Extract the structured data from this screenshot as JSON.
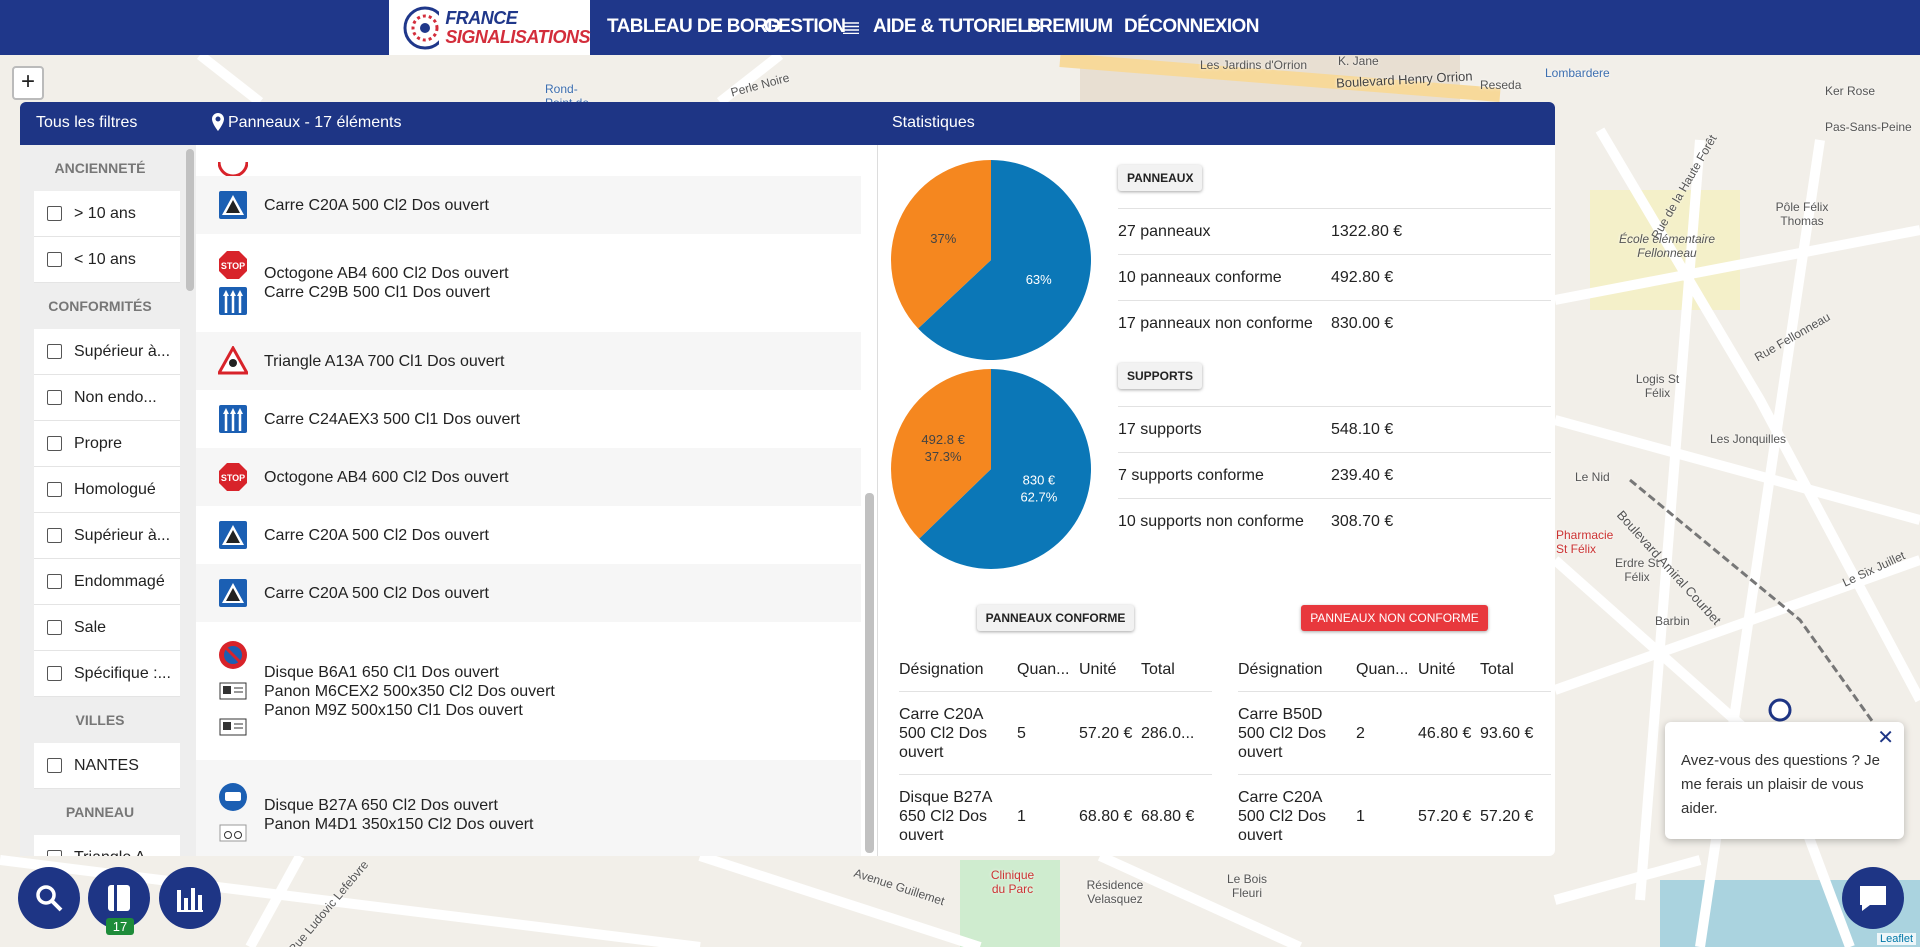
{
  "nav": {
    "logo": [
      "FRANCE",
      "SIGNALISATIONS"
    ],
    "links": [
      "TABLEAU DE BORD",
      "GESTION",
      "AIDE & TUTORIELS",
      "PREMIUM",
      "DÉCONNEXION"
    ]
  },
  "map": {
    "zoom_in": "+",
    "attribution": "Leaflet",
    "labels": [
      "Boulevard Henry Orrion",
      "Les Jardins d'Orrion",
      "K. Jane",
      "Reseda",
      "Lombardere",
      "Ker Rose",
      "Pas-Sans-Peine",
      "École élémentaire Fellonneau",
      "Pôle Félix Thomas",
      "Logis St Félix",
      "Les Jonquilles",
      "Le Nid",
      "Pharmacie St Félix",
      "Erdre St Félix",
      "Barbin",
      "Le Six Juillet",
      "Clinique du Parc",
      "Résidence Velasquez",
      "Le Bois Fleuri",
      "Avenue Guillemet",
      "Rue Ludovic Lefebvre",
      "Rond-Point de Rennes",
      "Perle Noire",
      "Boulevard Amiral Courbet",
      "Rue Fellonneau",
      "Rue de la Haute Forêt"
    ]
  },
  "filters": {
    "title": "Tous les filtres",
    "groups": [
      {
        "title": "ANCIENNETÉ",
        "options": [
          "> 10 ans",
          "< 10 ans"
        ]
      },
      {
        "title": "CONFORMITÉS",
        "options": [
          "Supérieur à...",
          "Non endo...",
          "Propre",
          "Homologué",
          "Supérieur à...",
          "Endommagé",
          "Sale",
          "Spécifique :..."
        ]
      },
      {
        "title": "VILLES",
        "options": [
          "NANTES"
        ]
      },
      {
        "title": "PANNEAU",
        "options": [
          "Triangle A..."
        ]
      }
    ]
  },
  "list": {
    "title": "Panneaux - 17 éléments",
    "items": [
      [
        "Carre C20A 500 Cl2 Dos ouvert"
      ],
      [
        "Octogone AB4 600 Cl2 Dos ouvert",
        "Carre C29B 500 Cl1 Dos ouvert"
      ],
      [
        "Triangle A13A 700 Cl1 Dos ouvert"
      ],
      [
        "Carre C24AEX3 500 Cl1 Dos ouvert"
      ],
      [
        "Octogone AB4 600 Cl2 Dos ouvert"
      ],
      [
        "Carre C20A 500 Cl2 Dos ouvert"
      ],
      [
        "Carre C20A 500 Cl2 Dos ouvert"
      ],
      [
        "Disque B6A1 650 Cl1 Dos ouvert",
        "Panon M6CEX2 500x350 Cl2 Dos ouvert",
        "Panon M9Z 500x150 Cl1 Dos ouvert"
      ],
      [
        "Disque B27A 650 Cl2 Dos ouvert",
        "Panon M4D1 350x150 Cl2 Dos ouvert"
      ]
    ]
  },
  "stats": {
    "title": "Statistiques",
    "sections": [
      {
        "badge": "PANNEAUX",
        "rows": [
          [
            "27 panneaux",
            "1322.80 €"
          ],
          [
            "10 panneaux conforme",
            "492.80 €"
          ],
          [
            "17 panneaux non conforme",
            "830.00 €"
          ]
        ]
      },
      {
        "badge": "SUPPORTS",
        "rows": [
          [
            "17 supports",
            "548.10 €"
          ],
          [
            "7 supports conforme",
            "239.40 €"
          ],
          [
            "10 supports non conforme",
            "308.70 €"
          ]
        ]
      }
    ]
  },
  "chart_data": [
    {
      "type": "pie",
      "colors": [
        "#0b77b7",
        "#f5871f"
      ],
      "values": [
        63,
        37
      ],
      "value_labels": [
        "63%",
        "37%"
      ]
    },
    {
      "type": "pie",
      "colors": [
        "#0b77b7",
        "#f5871f"
      ],
      "values": [
        830,
        492.8
      ],
      "value_labels": [
        "830 €",
        "492.8 €"
      ],
      "percent_labels": [
        "62.7%",
        "37.3%"
      ]
    }
  ],
  "tables": [
    {
      "badge": "PANNEAUX CONFORME",
      "columns": [
        "Désignation",
        "Quan...",
        "Unité",
        "Total"
      ],
      "rows": [
        [
          "Carre C20A 500 Cl2 Dos ouvert",
          "5",
          "57.20 €",
          "286.0..."
        ],
        [
          "Disque B27A 650 Cl2 Dos ouvert",
          "1",
          "68.80 €",
          "68.80 €"
        ]
      ]
    },
    {
      "badge": "PANNEAUX NON CONFORME",
      "columns": [
        "Désignation",
        "Quan...",
        "Unité",
        "Total"
      ],
      "rows": [
        [
          "Carre B50D 500 Cl2 Dos ouvert",
          "2",
          "46.80 €",
          "93.60 €"
        ],
        [
          "Carre C20A 500 Cl2 Dos ouvert",
          "1",
          "57.20 €",
          "57.20 €"
        ]
      ]
    }
  ],
  "chat": {
    "message": "Avez-vous des questions ? Je me ferais un plaisir de vous aider."
  },
  "buttons": {
    "badge": "17"
  }
}
